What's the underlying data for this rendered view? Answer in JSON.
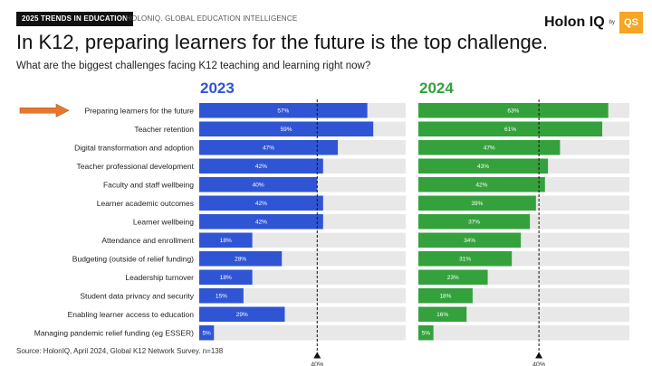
{
  "header": {
    "tag": "2025 TRENDS IN EDUCATION",
    "source_top": "HOLONIQ. GLOBAL EDUCATION INTELLIGENCE",
    "logo_text": "Holon IQ",
    "logo_by": "by",
    "logo_qs": "QS"
  },
  "title": "In K12, preparing learners for the future is the top challenge.",
  "subtitle": "What are the biggest challenges facing K12 teaching and learning right now?",
  "footnote": "Source: HolonIQ, April 2024, Global K12 Network Survey. n=138",
  "colors": {
    "series_2023": "#2f55d4",
    "series_2024": "#34a13c",
    "track": "#e8e8e8",
    "arrow": "#e8772e"
  },
  "chart_data": {
    "type": "bar",
    "orientation": "horizontal",
    "categories": [
      "Preparing learners for the future",
      "Teacher retention",
      "Digital transformation and adoption",
      "Teacher professional development",
      "Faculty and staff wellbeing",
      "Learner academic outcomes",
      "Learner wellbeing",
      "Attendance and enrollment",
      "Budgeting (outside of relief funding)",
      "Leadership turnover",
      "Student data privacy and security",
      "Enabling learner access to education",
      "Managing pandemic relief funding (eg ESSER)"
    ],
    "series": [
      {
        "name": "2023",
        "values": [
          57,
          59,
          47,
          42,
          40,
          42,
          42,
          18,
          28,
          18,
          15,
          29,
          5
        ]
      },
      {
        "name": "2024",
        "values": [
          63,
          61,
          47,
          43,
          42,
          39,
          37,
          34,
          31,
          23,
          18,
          16,
          5
        ]
      }
    ],
    "value_suffix": "%",
    "xlim": [
      0,
      70
    ],
    "reference_line": {
      "value": 40,
      "label": "40%"
    },
    "highlight_category_index": 0
  }
}
